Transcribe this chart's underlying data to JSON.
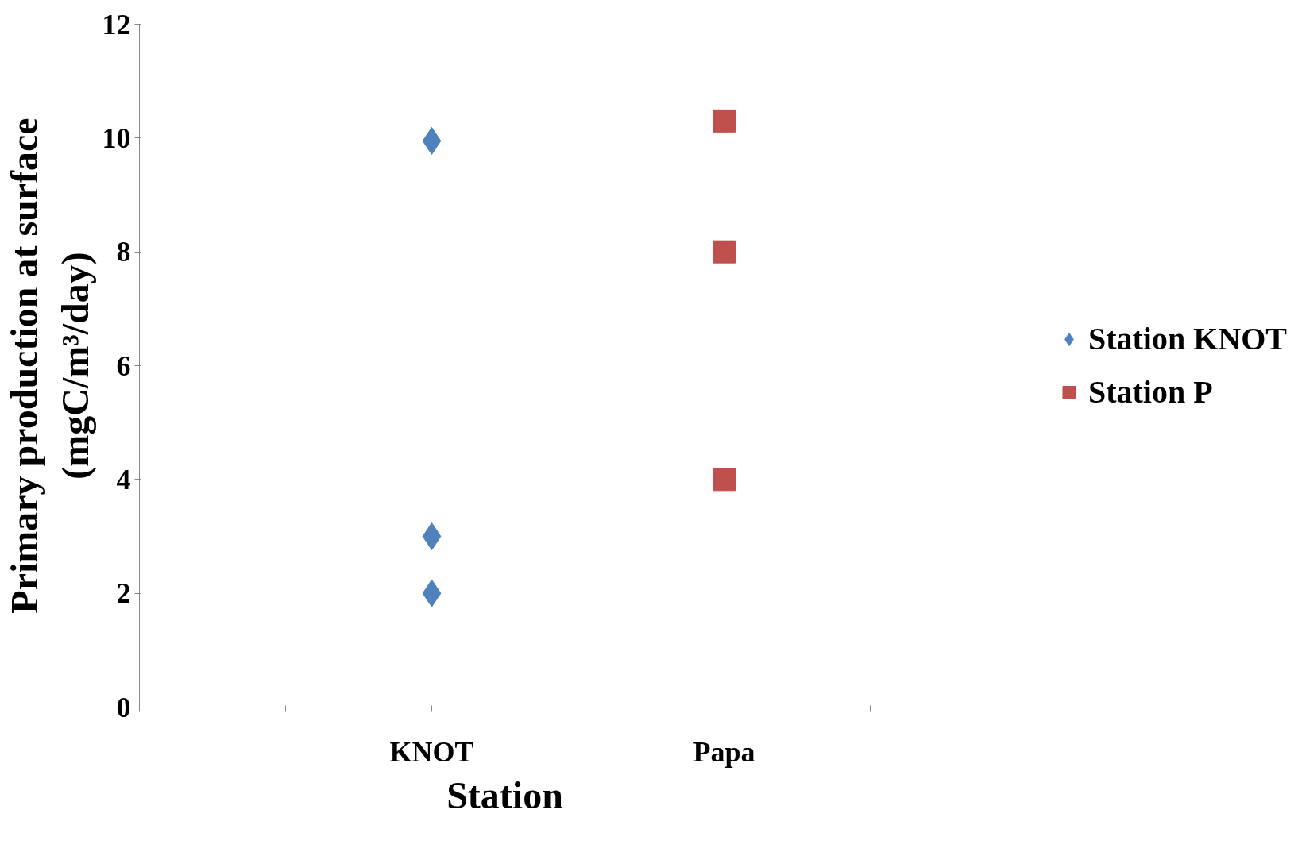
{
  "chart_data": {
    "type": "scatter",
    "xlabel": "Station",
    "ylabel": "Primary production at surface\n(mgC/m³/day)",
    "categories": [
      "KNOT",
      "Papa"
    ],
    "ylim": [
      0,
      12
    ],
    "yticks": [
      0,
      2,
      4,
      6,
      8,
      10,
      12
    ],
    "grid": false,
    "legend": "right",
    "series": [
      {
        "name": "Station KNOT",
        "color": "#4f81bd",
        "marker": "diamond",
        "x": [
          "KNOT",
          "KNOT",
          "KNOT"
        ],
        "values": [
          9.95,
          3,
          2
        ]
      },
      {
        "name": "Station P",
        "color": "#c0504d",
        "marker": "square",
        "x": [
          "Papa",
          "Papa",
          "Papa"
        ],
        "values": [
          10.3,
          8,
          4
        ]
      }
    ]
  }
}
